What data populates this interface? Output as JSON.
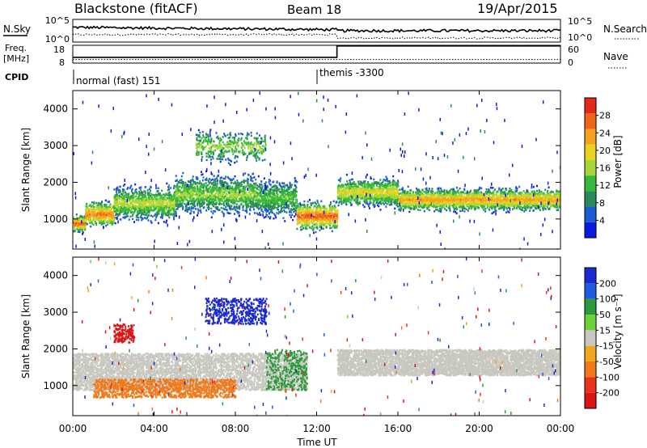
{
  "header": {
    "station": "Blackstone (fitACF)",
    "beam": "Beam 18",
    "date": "19/Apr/2015"
  },
  "noise_panel": {
    "left_label": "N.Sky",
    "right_label": "N.Search",
    "left_ticks": [
      "10^5",
      "10^0"
    ],
    "right_ticks": [
      "10^5",
      "10^0"
    ]
  },
  "freq_panel": {
    "left_label_line1": "Freq.",
    "left_label_line2": "[MHz]",
    "right_label": "Nave",
    "left_ticks": [
      "18",
      "8"
    ],
    "right_ticks": [
      "60",
      "0"
    ],
    "freq_mhz_before_1300": 11.2,
    "freq_mhz_after_1300": 17.6,
    "nave_level": 0.2
  },
  "cpid": {
    "label": "CPID",
    "segments": [
      {
        "name": "normal (fast) 151",
        "start": "00:00",
        "end": "12:00"
      },
      {
        "name": "themis -3300",
        "start": "12:00",
        "end": "24:00"
      }
    ]
  },
  "power_panel": {
    "ylabel": "Slant Range [km]",
    "yticks": [
      "1000",
      "2000",
      "3000",
      "4000"
    ],
    "colorbar_label": "Power [dB]",
    "colorbar_ticks": [
      "4",
      "8",
      "12",
      "16",
      "20",
      "24",
      "28"
    ],
    "colors": [
      "#0a1adf",
      "#1a5bd6",
      "#2a8a5a",
      "#36b83a",
      "#a6d63a",
      "#e8d31e",
      "#f5a21e",
      "#f0641a",
      "#e4281a"
    ]
  },
  "velocity_panel": {
    "ylabel": "Slant Range [km]",
    "yticks": [
      "1000",
      "2000",
      "3000",
      "4000"
    ],
    "colorbar_label": "Velocity [m s⁻¹]",
    "colorbar_ticks": [
      "200",
      "100",
      "50",
      "15",
      "-15",
      "-50",
      "-100",
      "-200"
    ],
    "colors": [
      "#1a2ad0",
      "#1f5be0",
      "#2a9a3a",
      "#6cd23a",
      "#c8c8c0",
      "#f0a81e",
      "#f07a1a",
      "#e8321a",
      "#d81616"
    ]
  },
  "xaxis": {
    "label": "Time UT",
    "ticks": [
      "00:00",
      "04:00",
      "08:00",
      "12:00",
      "16:00",
      "20:00",
      "00:00"
    ]
  },
  "chart_data": [
    {
      "type": "heatmap",
      "title": "Power",
      "xlabel": "Time UT",
      "ylabel": "Slant Range [km]",
      "x_range_hours": [
        0,
        24
      ],
      "y_range_km": [
        180,
        4500
      ],
      "colorbar": {
        "label": "Power [dB]",
        "range": [
          0,
          32
        ]
      },
      "bands": [
        {
          "t_start": 0.0,
          "t_end": 0.6,
          "range_center_km": 900,
          "width_km": 300,
          "peak_db": 28
        },
        {
          "t_start": 0.6,
          "t_end": 2.0,
          "range_center_km": 1150,
          "width_km": 450,
          "peak_db": 26
        },
        {
          "t_start": 2.0,
          "t_end": 5.0,
          "range_center_km": 1450,
          "width_km": 600,
          "peak_db": 18
        },
        {
          "t_start": 5.0,
          "t_end": 9.0,
          "range_center_km": 1700,
          "width_km": 700,
          "peak_db": 16
        },
        {
          "t_start": 9.0,
          "t_end": 11.0,
          "range_center_km": 1600,
          "width_km": 700,
          "peak_db": 14
        },
        {
          "t_start": 11.0,
          "t_end": 13.0,
          "range_center_km": 1100,
          "width_km": 500,
          "peak_db": 28
        },
        {
          "t_start": 13.0,
          "t_end": 16.0,
          "range_center_km": 1750,
          "width_km": 500,
          "peak_db": 20
        },
        {
          "t_start": 16.0,
          "t_end": 24.0,
          "range_center_km": 1550,
          "width_km": 400,
          "peak_db": 24
        }
      ],
      "secondary_echoes": [
        {
          "t_start": 6.0,
          "t_end": 9.5,
          "range_center_km": 3000,
          "width_km": 600,
          "peak_db": 16
        }
      ]
    },
    {
      "type": "heatmap",
      "title": "Velocity",
      "xlabel": "Time UT",
      "ylabel": "Slant Range [km]",
      "x_range_hours": [
        0,
        24
      ],
      "y_range_km": [
        180,
        4500
      ],
      "colorbar": {
        "label": "Velocity [m s⁻¹]",
        "range": [
          -250,
          250
        ]
      },
      "regions": [
        {
          "t_start": 0.0,
          "t_end": 11.5,
          "range_min_km": 900,
          "range_max_km": 1900,
          "velocity": 0
        },
        {
          "t_start": 13.0,
          "t_end": 24.0,
          "range_min_km": 1300,
          "range_max_km": 2000,
          "velocity": 0
        },
        {
          "t_start": 6.5,
          "t_end": 9.5,
          "range_min_km": 2700,
          "range_max_km": 3400,
          "velocity": 200
        },
        {
          "t_start": 9.5,
          "t_end": 11.5,
          "range_min_km": 900,
          "range_max_km": 2000,
          "velocity": 50
        },
        {
          "t_start": 2.0,
          "t_end": 3.0,
          "range_min_km": 2200,
          "range_max_km": 2700,
          "velocity": -200
        },
        {
          "t_start": 1.0,
          "t_end": 8.0,
          "range_min_km": 700,
          "range_max_km": 1200,
          "velocity": -50
        }
      ]
    }
  ]
}
